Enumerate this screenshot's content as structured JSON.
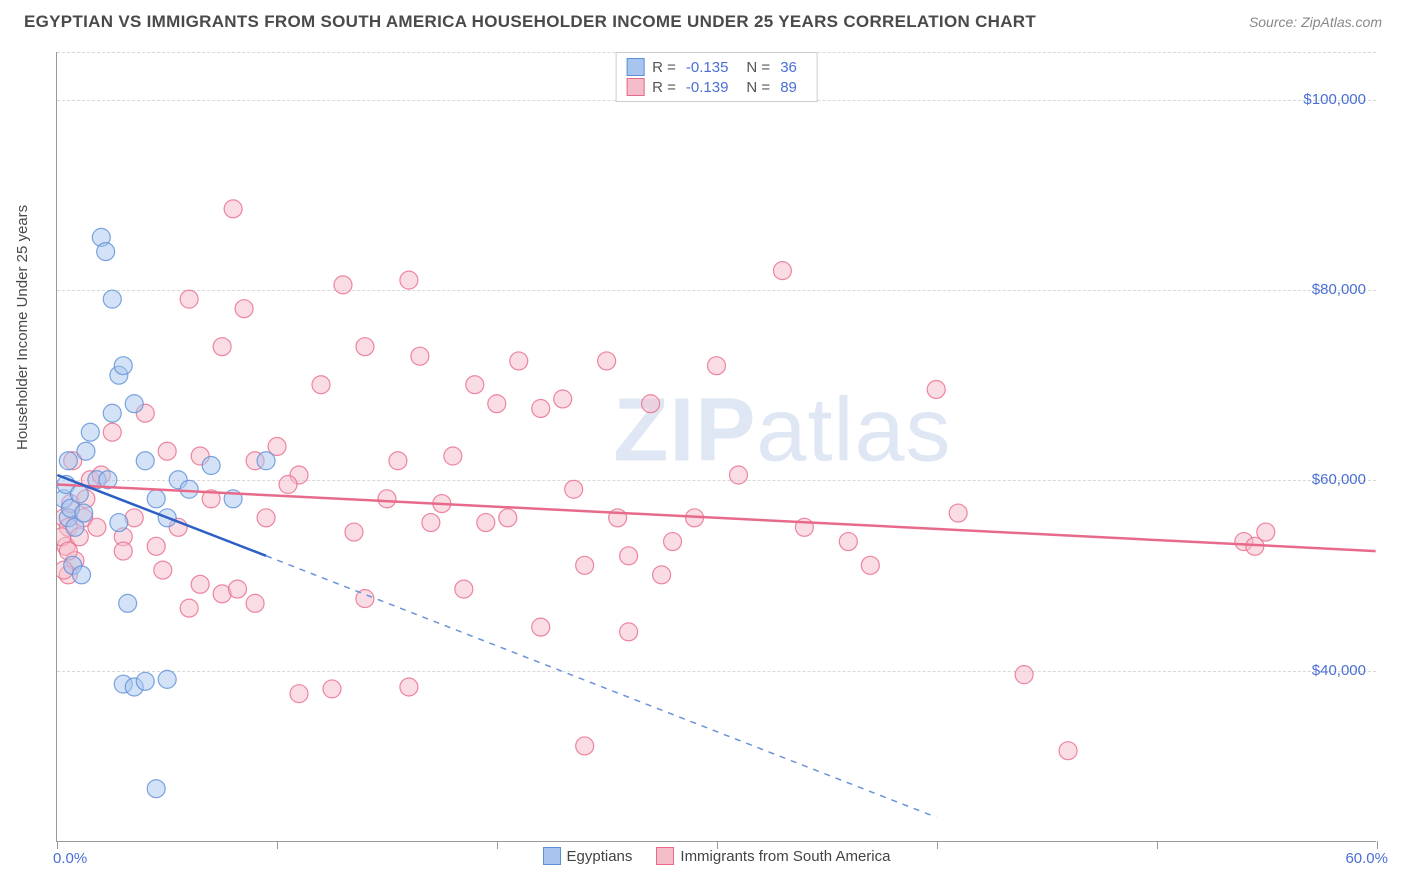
{
  "title": "EGYPTIAN VS IMMIGRANTS FROM SOUTH AMERICA HOUSEHOLDER INCOME UNDER 25 YEARS CORRELATION CHART",
  "source": "Source: ZipAtlas.com",
  "watermark_bold": "ZIP",
  "watermark_rest": "atlas",
  "y_axis_title": "Householder Income Under 25 years",
  "chart": {
    "type": "scatter",
    "background_color": "#ffffff",
    "grid_color": "#d8d8d8",
    "xlim": [
      0,
      60
    ],
    "ylim": [
      22000,
      105000
    ],
    "x_ticks": [
      0,
      10,
      20,
      30,
      40,
      50,
      60
    ],
    "x_label_start": "0.0%",
    "x_label_end": "60.0%",
    "y_ticks": [
      40000,
      60000,
      80000,
      100000
    ],
    "y_tick_labels": [
      "$40,000",
      "$60,000",
      "$80,000",
      "$100,000"
    ],
    "marker_radius": 9,
    "marker_stroke_width": 1.2,
    "marker_fill_opacity": 0.25,
    "trend_line_width": 2.5,
    "series": [
      {
        "name": "Egyptians",
        "color_fill": "#a8c5f0",
        "color_stroke": "#5c8fd6",
        "r_value": "-0.135",
        "n_value": "36",
        "trend_solid": {
          "x1": 0,
          "y1": 60500,
          "x2": 9.5,
          "y2": 52000
        },
        "trend_dashed": {
          "x1": 9.5,
          "y1": 52000,
          "x2": 40,
          "y2": 24500
        },
        "points": [
          [
            0.3,
            58000
          ],
          [
            0.5,
            56000
          ],
          [
            0.4,
            59500
          ],
          [
            0.6,
            57000
          ],
          [
            0.8,
            55000
          ],
          [
            0.5,
            62000
          ],
          [
            1.0,
            58500
          ],
          [
            1.2,
            56500
          ],
          [
            1.5,
            65000
          ],
          [
            1.3,
            63000
          ],
          [
            1.8,
            60000
          ],
          [
            0.7,
            51000
          ],
          [
            2.0,
            85500
          ],
          [
            2.2,
            84000
          ],
          [
            2.5,
            79000
          ],
          [
            2.8,
            71000
          ],
          [
            2.5,
            67000
          ],
          [
            2.3,
            60000
          ],
          [
            1.1,
            50000
          ],
          [
            3.0,
            72000
          ],
          [
            3.5,
            68000
          ],
          [
            4.0,
            62000
          ],
          [
            4.5,
            58000
          ],
          [
            3.2,
            47000
          ],
          [
            5.0,
            56000
          ],
          [
            5.5,
            60000
          ],
          [
            6.0,
            59000
          ],
          [
            7.0,
            61500
          ],
          [
            8.0,
            58000
          ],
          [
            9.5,
            62000
          ],
          [
            3.0,
            38500
          ],
          [
            3.5,
            38200
          ],
          [
            4.0,
            38800
          ],
          [
            5.0,
            39000
          ],
          [
            4.5,
            27500
          ],
          [
            2.8,
            55500
          ]
        ]
      },
      {
        "name": "Immigrants from South America",
        "color_fill": "#f5bcc9",
        "color_stroke": "#e86a8a",
        "r_value": "-0.139",
        "n_value": "89",
        "trend_solid": {
          "x1": 0,
          "y1": 59500,
          "x2": 60,
          "y2": 52500
        },
        "trend_dashed": null,
        "points": [
          [
            0.3,
            56000
          ],
          [
            0.5,
            55000
          ],
          [
            0.6,
            57500
          ],
          [
            0.4,
            53000
          ],
          [
            0.8,
            51500
          ],
          [
            0.5,
            50000
          ],
          [
            1.0,
            54000
          ],
          [
            1.2,
            56000
          ],
          [
            1.5,
            60000
          ],
          [
            1.3,
            58000
          ],
          [
            1.8,
            55000
          ],
          [
            0.7,
            62000
          ],
          [
            0.3,
            50500
          ],
          [
            0.2,
            54000
          ],
          [
            0.5,
            52500
          ],
          [
            2.0,
            60500
          ],
          [
            2.5,
            65000
          ],
          [
            3.0,
            54000
          ],
          [
            3.5,
            56000
          ],
          [
            4.0,
            67000
          ],
          [
            4.5,
            53000
          ],
          [
            5.0,
            63000
          ],
          [
            5.5,
            55000
          ],
          [
            6.0,
            79000
          ],
          [
            6.5,
            62500
          ],
          [
            7.0,
            58000
          ],
          [
            7.5,
            74000
          ],
          [
            8.0,
            88500
          ],
          [
            8.5,
            78000
          ],
          [
            9.0,
            62000
          ],
          [
            9.5,
            56000
          ],
          [
            10.0,
            63500
          ],
          [
            11.0,
            60500
          ],
          [
            12.0,
            70000
          ],
          [
            13.0,
            80500
          ],
          [
            14.0,
            74000
          ],
          [
            15.0,
            58000
          ],
          [
            15.5,
            62000
          ],
          [
            16.0,
            81000
          ],
          [
            16.5,
            73000
          ],
          [
            17.0,
            55500
          ],
          [
            18.0,
            62500
          ],
          [
            19.0,
            70000
          ],
          [
            20.0,
            68000
          ],
          [
            20.5,
            56000
          ],
          [
            21.0,
            72500
          ],
          [
            22.0,
            67500
          ],
          [
            23.0,
            68500
          ],
          [
            23.5,
            59000
          ],
          [
            24.0,
            51000
          ],
          [
            25.0,
            72500
          ],
          [
            25.5,
            56000
          ],
          [
            26.0,
            52000
          ],
          [
            27.0,
            68000
          ],
          [
            27.5,
            50000
          ],
          [
            28.0,
            53500
          ],
          [
            29.0,
            56000
          ],
          [
            30.0,
            72000
          ],
          [
            31.0,
            60500
          ],
          [
            33.0,
            82000
          ],
          [
            34.0,
            55000
          ],
          [
            36.0,
            53500
          ],
          [
            37.0,
            51000
          ],
          [
            6.0,
            46500
          ],
          [
            7.5,
            48000
          ],
          [
            9.0,
            47000
          ],
          [
            11.0,
            37500
          ],
          [
            12.5,
            38000
          ],
          [
            14.0,
            47500
          ],
          [
            16.0,
            38200
          ],
          [
            18.5,
            48500
          ],
          [
            22.0,
            44500
          ],
          [
            24.0,
            32000
          ],
          [
            26.0,
            44000
          ],
          [
            40.0,
            69500
          ],
          [
            41.0,
            56500
          ],
          [
            44.0,
            39500
          ],
          [
            46.0,
            31500
          ],
          [
            54.0,
            53500
          ],
          [
            54.5,
            53000
          ],
          [
            55.0,
            54500
          ],
          [
            3.0,
            52500
          ],
          [
            4.8,
            50500
          ],
          [
            6.5,
            49000
          ],
          [
            8.2,
            48500
          ],
          [
            10.5,
            59500
          ],
          [
            13.5,
            54500
          ],
          [
            17.5,
            57500
          ],
          [
            19.5,
            55500
          ]
        ]
      }
    ]
  },
  "top_legend": {
    "r_label": "R =",
    "n_label": "N ="
  },
  "bottom_legend_items": [
    "Egyptians",
    "Immigrants from South America"
  ]
}
